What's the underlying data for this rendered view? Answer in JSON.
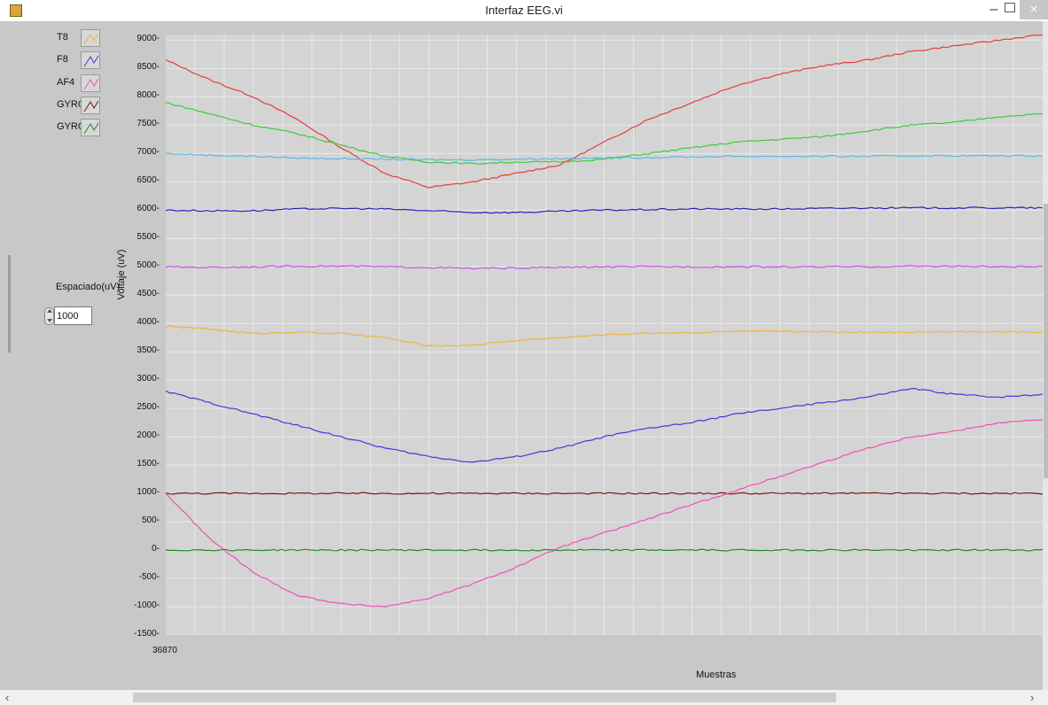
{
  "window": {
    "title": "Interfaz EEG.vi",
    "minimize": "–",
    "close": "×"
  },
  "legend": [
    {
      "label": "T8",
      "color": "#f0b43c"
    },
    {
      "label": "F8",
      "color": "#3c3cdc"
    },
    {
      "label": "AF4",
      "color": "#f050b4"
    },
    {
      "label": "GYRO X",
      "color": "#7a1414"
    },
    {
      "label": "GYRO Y",
      "color": "#1e8c1e"
    }
  ],
  "spacing": {
    "label": "Espaciado(uV)",
    "value": "1000"
  },
  "chart_data": {
    "type": "line",
    "ylabel": "Voltaje (uV)",
    "xlabel": "Muestras",
    "ylim": [
      -1500,
      9100
    ],
    "yticks": [
      -1500,
      -1000,
      -500,
      0,
      500,
      1000,
      1500,
      2000,
      2500,
      3000,
      3500,
      4000,
      4500,
      5000,
      5500,
      6000,
      6500,
      7000,
      7500,
      8000,
      8500,
      9000
    ],
    "xtick_label": "36870",
    "x": [
      0,
      0.05,
      0.1,
      0.15,
      0.2,
      0.25,
      0.3,
      0.35,
      0.4,
      0.45,
      0.5,
      0.55,
      0.6,
      0.65,
      0.7,
      0.75,
      0.8,
      0.85,
      0.9,
      0.95,
      1.0
    ],
    "background": "#d4d4d4",
    "grid_color": "#e9e9e9",
    "series": [
      {
        "color": "#e83c3c",
        "values": [
          8650,
          8300,
          8000,
          7600,
          7100,
          6650,
          6400,
          6500,
          6650,
          6800,
          7200,
          7600,
          7900,
          8200,
          8400,
          8550,
          8650,
          8800,
          8900,
          9000,
          9100
        ]
      },
      {
        "color": "#3ccc3c",
        "values": [
          7900,
          7700,
          7500,
          7350,
          7150,
          6950,
          6850,
          6820,
          6850,
          6850,
          6900,
          7000,
          7100,
          7200,
          7250,
          7300,
          7400,
          7500,
          7550,
          7650,
          7700
        ]
      },
      {
        "color": "#5bb8e8",
        "values": [
          7000,
          6970,
          6950,
          6920,
          6910,
          6900,
          6890,
          6890,
          6900,
          6910,
          6920,
          6930,
          6940,
          6950,
          6950,
          6950,
          6950,
          6960,
          6960,
          6960,
          6960
        ]
      },
      {
        "color": "#2424b8",
        "values": [
          6000,
          5990,
          5990,
          6020,
          6030,
          6020,
          5990,
          5960,
          5960,
          5980,
          6000,
          6010,
          6020,
          6020,
          6020,
          6030,
          6040,
          6040,
          6040,
          6040,
          6040
        ]
      },
      {
        "color": "#c850e6",
        "values": [
          5000,
          4990,
          5000,
          5010,
          5010,
          5000,
          4990,
          4970,
          4980,
          4990,
          5000,
          5000,
          5000,
          5000,
          5000,
          5000,
          5000,
          5010,
          5010,
          5000,
          5000
        ]
      },
      {
        "color": "#f0b43c",
        "values": [
          3950,
          3900,
          3820,
          3850,
          3820,
          3750,
          3600,
          3620,
          3700,
          3750,
          3800,
          3830,
          3840,
          3860,
          3860,
          3850,
          3850,
          3850,
          3860,
          3850,
          3850
        ]
      },
      {
        "color": "#3c3cdc",
        "values": [
          2800,
          2600,
          2400,
          2200,
          2000,
          1800,
          1650,
          1550,
          1650,
          1800,
          2000,
          2150,
          2250,
          2400,
          2500,
          2600,
          2700,
          2850,
          2750,
          2700,
          2750
        ]
      },
      {
        "color": "#7a1414",
        "values": [
          1000,
          1000,
          1000,
          1000,
          1000,
          1000,
          1000,
          1000,
          1000,
          1000,
          1000,
          1000,
          1000,
          1000,
          1000,
          1000,
          1000,
          1000,
          1000,
          1000,
          1000
        ]
      },
      {
        "color": "#f050b4",
        "values": [
          1000,
          200,
          -400,
          -800,
          -950,
          -1000,
          -850,
          -600,
          -300,
          50,
          300,
          550,
          800,
          1050,
          1300,
          1550,
          1800,
          2000,
          2100,
          2250,
          2300
        ]
      },
      {
        "color": "#1e8c1e",
        "values": [
          0,
          0,
          0,
          0,
          0,
          0,
          0,
          0,
          0,
          0,
          0,
          0,
          0,
          0,
          0,
          0,
          0,
          0,
          0,
          0,
          0
        ]
      }
    ]
  }
}
